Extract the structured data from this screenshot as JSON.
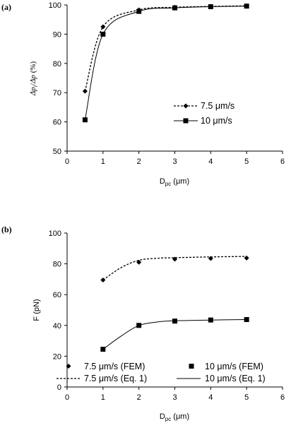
{
  "chart_data": [
    {
      "panel_label": "(a)",
      "type": "line",
      "xlabel": {
        "main": "D",
        "sub": "pc",
        "unit": " (μm)"
      },
      "ylabel": {
        "n1": "Δp",
        "sub1": "i",
        "slash": "/",
        "n2": "Δp",
        "unit": " (%)"
      },
      "xlim": [
        0,
        6
      ],
      "ylim": [
        50,
        100
      ],
      "xticks": [
        0,
        1,
        2,
        3,
        4,
        5,
        6
      ],
      "yticks": [
        50,
        60,
        70,
        80,
        90,
        100
      ],
      "grid": false,
      "legend_position": "right-middle",
      "series": [
        {
          "name": "7.5 μm/s",
          "x": [
            0.5,
            1,
            2,
            3,
            4,
            5
          ],
          "values": [
            70.5,
            92.5,
            98.3,
            99.2,
            99.5,
            99.7
          ],
          "marker": "diamond",
          "line": "dotted"
        },
        {
          "name": "10 μm/s",
          "x": [
            0.5,
            1,
            2,
            3,
            4,
            5
          ],
          "values": [
            60.7,
            90,
            97.8,
            99,
            99.4,
            99.6
          ],
          "marker": "square",
          "line": "solid"
        }
      ]
    },
    {
      "panel_label": "(b)",
      "type": "line",
      "xlabel": {
        "main": "D",
        "sub": "pc",
        "unit": " (μm)"
      },
      "ylabel": {
        "text": "F (pN)"
      },
      "xlim": [
        0,
        6
      ],
      "ylim": [
        0,
        100
      ],
      "xticks": [
        0,
        1,
        2,
        3,
        4,
        5,
        6
      ],
      "yticks": [
        0,
        20,
        40,
        60,
        80,
        100
      ],
      "grid": false,
      "legend_position": "bottom",
      "series": [
        {
          "name": "7.5 μm/s (FEM)",
          "x": [
            1,
            2,
            3,
            4,
            5
          ],
          "values": [
            69.5,
            81,
            83,
            83.5,
            83.8
          ],
          "marker": "diamond"
        },
        {
          "name": "10 μm/s (FEM)",
          "x": [
            1,
            2,
            3,
            4,
            5
          ],
          "values": [
            24.5,
            40,
            42.8,
            43.5,
            43.8
          ],
          "marker": "square"
        },
        {
          "name": "7.5 μm/s (Eq. 1)",
          "x": [
            1,
            1.5,
            2,
            2.5,
            3,
            4,
            5
          ],
          "values": [
            69.5,
            77.5,
            82.3,
            83.6,
            84,
            84.5,
            84.8
          ],
          "line": "dotted"
        },
        {
          "name": "10 μm/s (Eq. 1)",
          "x": [
            1,
            1.5,
            2,
            2.5,
            3,
            4,
            5
          ],
          "values": [
            24.5,
            33,
            40,
            42.2,
            43,
            43.5,
            43.8
          ],
          "line": "solid"
        }
      ]
    }
  ]
}
